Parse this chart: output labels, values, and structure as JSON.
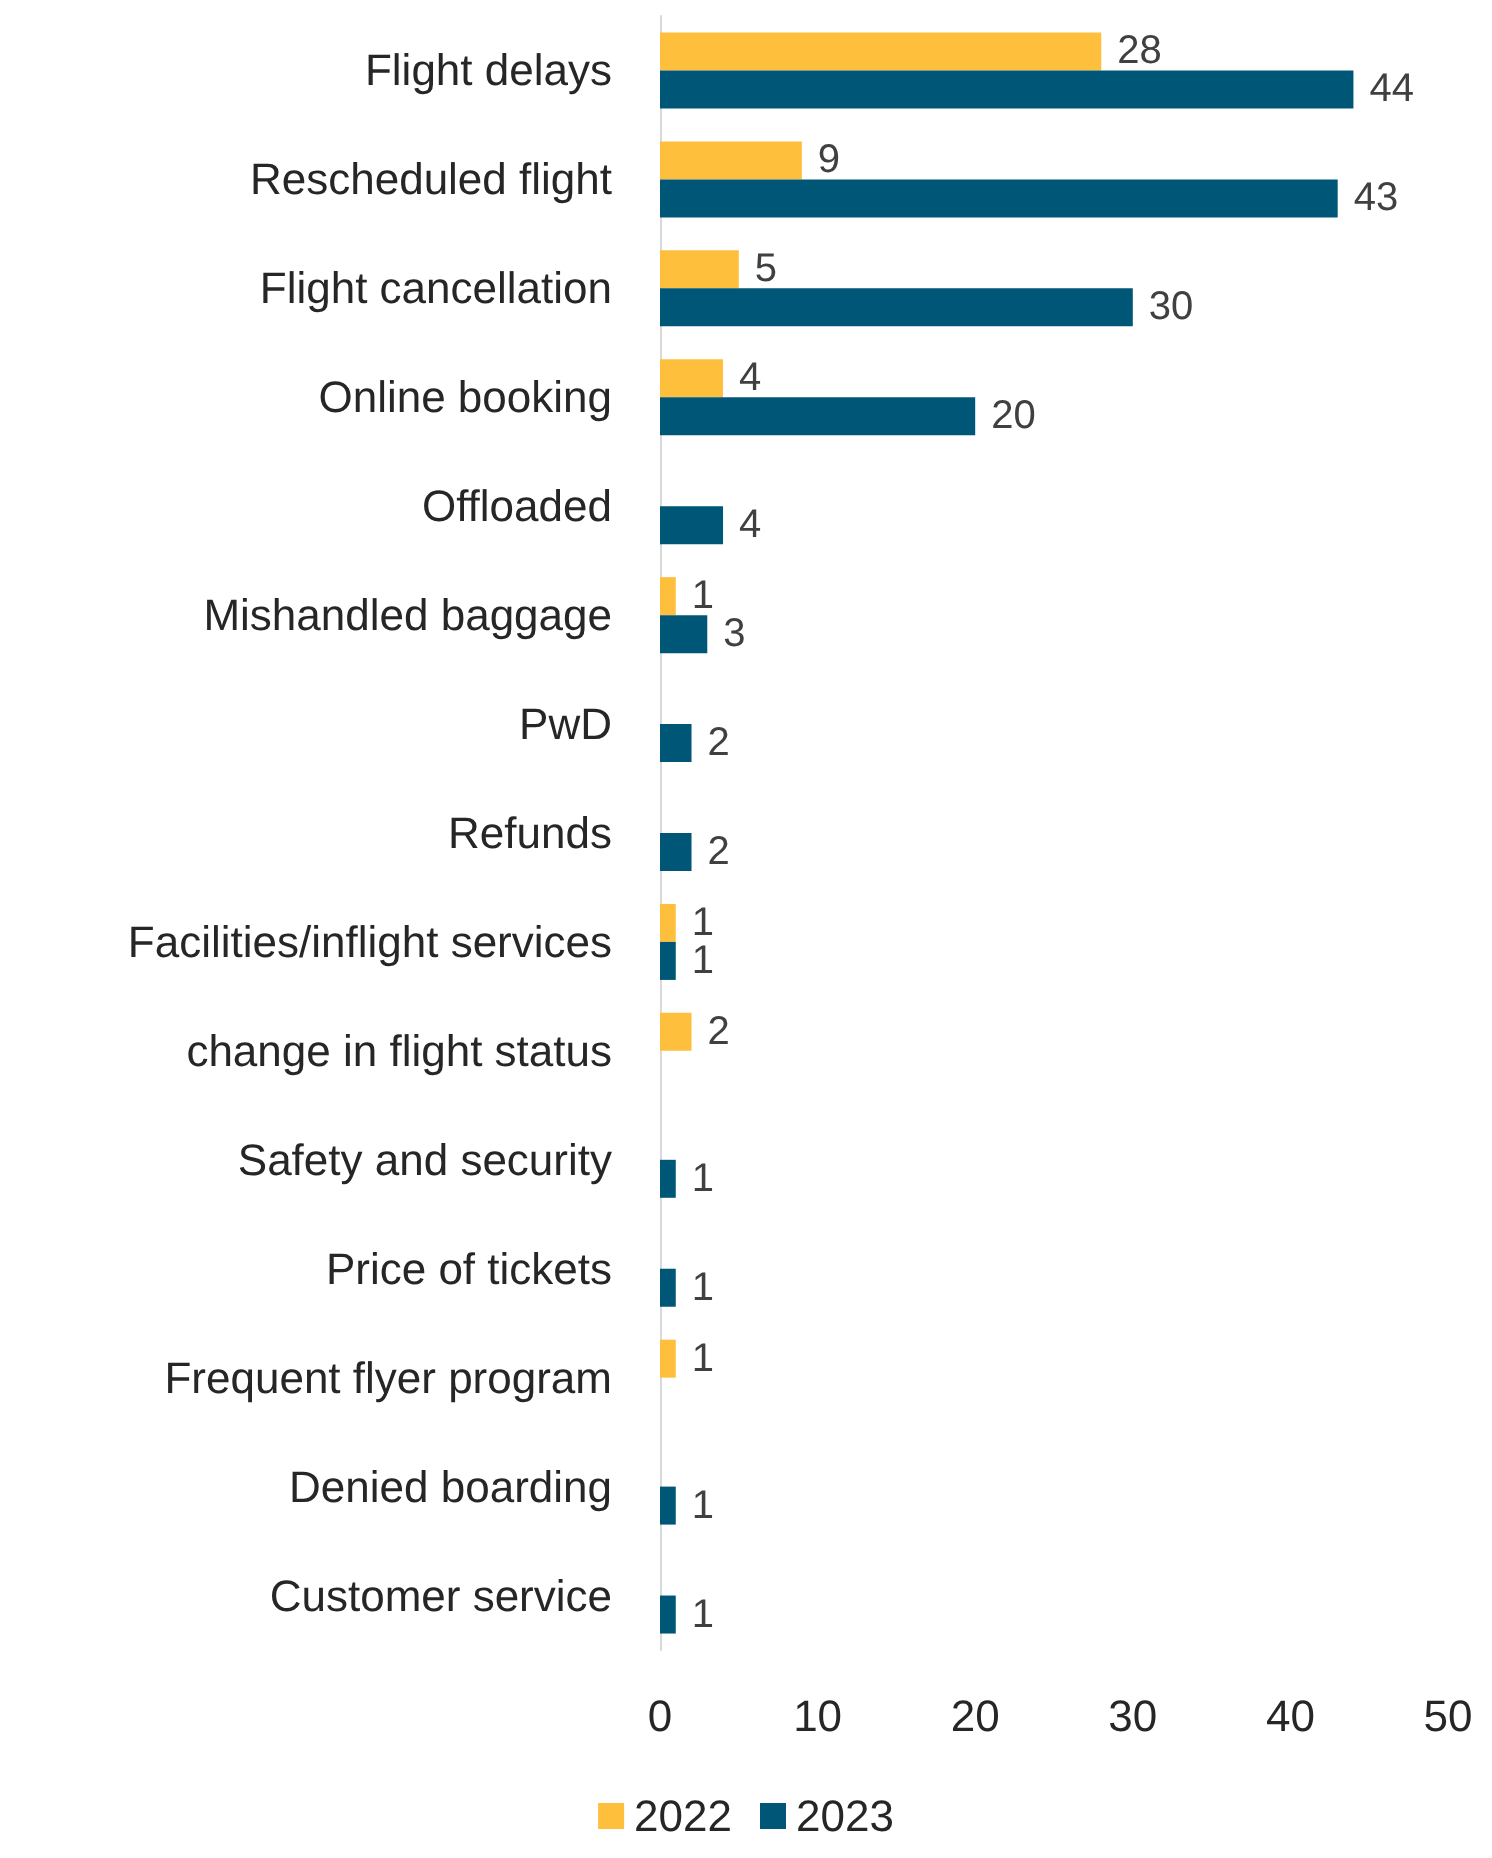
{
  "chart_data": {
    "type": "bar",
    "orientation": "horizontal",
    "categories": [
      "Flight delays",
      "Rescheduled flight",
      "Flight cancellation",
      "Online booking",
      "Offloaded",
      "Mishandled baggage",
      "PwD",
      "Refunds",
      "Facilities/inflight services",
      "change in flight status",
      "Safety and security",
      "Price of tickets",
      "Frequent flyer program",
      "Denied boarding",
      "Customer service"
    ],
    "series": [
      {
        "name": "2022",
        "color": "#fdbf3c",
        "values": [
          28,
          9,
          5,
          4,
          null,
          1,
          null,
          null,
          1,
          2,
          null,
          null,
          1,
          null,
          null
        ]
      },
      {
        "name": "2023",
        "color": "#005677",
        "values": [
          44,
          43,
          30,
          20,
          4,
          3,
          2,
          2,
          1,
          null,
          1,
          1,
          null,
          1,
          1
        ]
      }
    ],
    "xlim": [
      0,
      50
    ],
    "xticks": [
      0,
      10,
      20,
      30,
      40,
      50
    ],
    "grid": false,
    "legend": "bottom",
    "data_labels": true
  }
}
